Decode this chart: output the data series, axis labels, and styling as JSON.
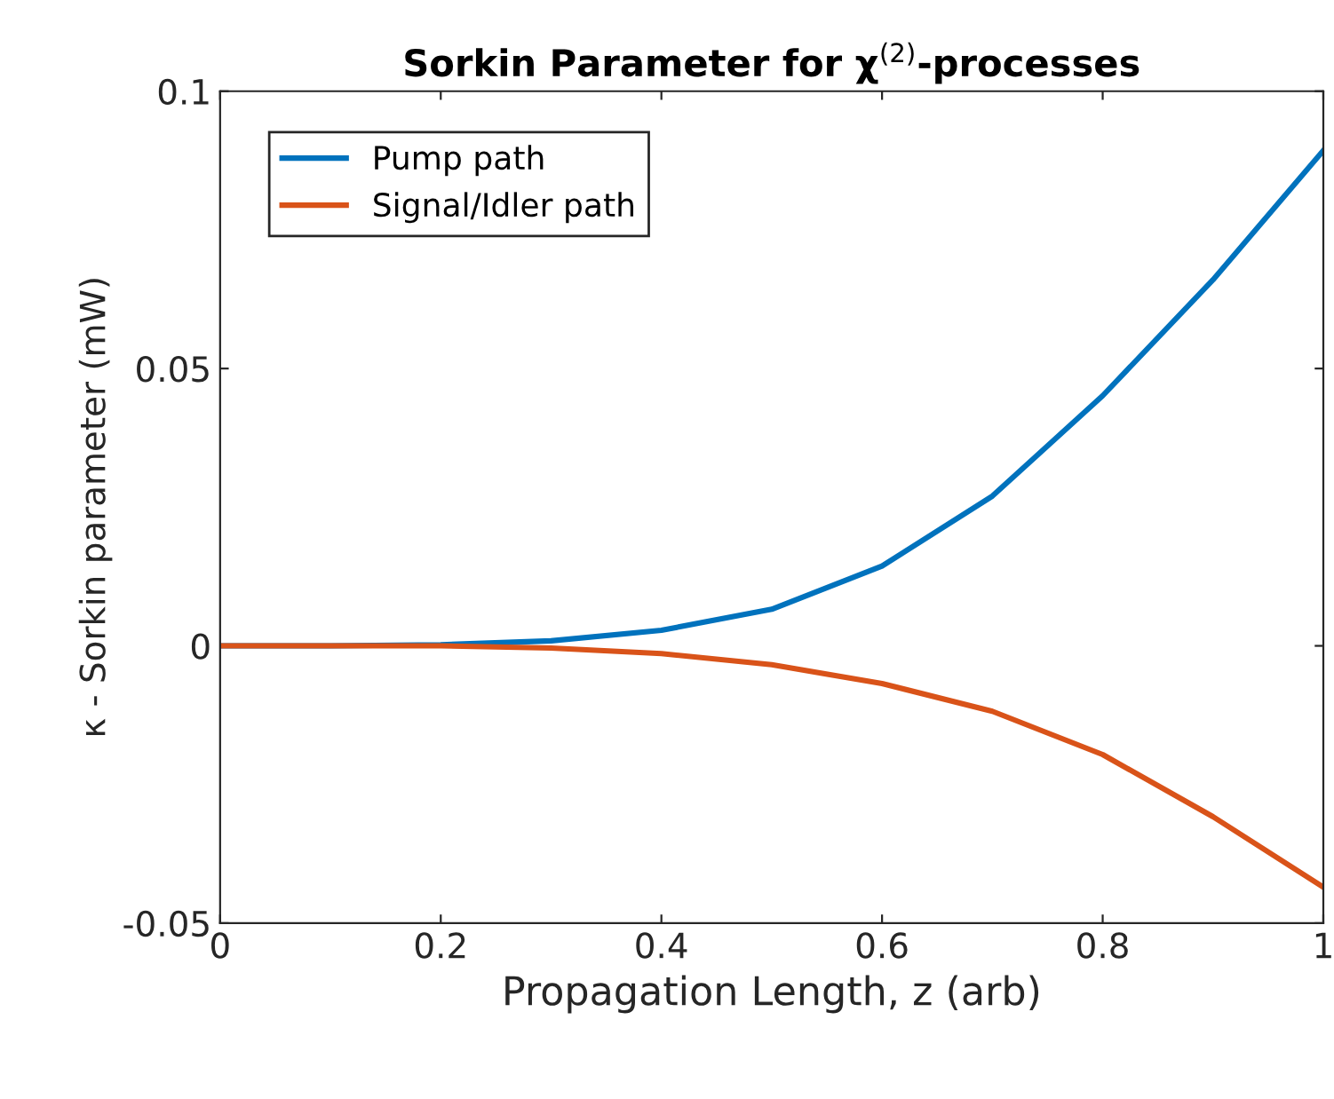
{
  "chart_data": {
    "type": "line",
    "title": "Sorkin Parameter for χ$^{(2)}$-processes",
    "xlabel": "Propagation Length, z (arb)",
    "ylabel": "κ - Sorkin parameter (mW)",
    "x": [
      0,
      0.1,
      0.2,
      0.3,
      0.4,
      0.5,
      0.6,
      0.7,
      0.8,
      0.9,
      1.0
    ],
    "series": [
      {
        "name": "Pump path",
        "color": "#0072bd",
        "values": [
          0,
          0,
          0.0002,
          0.0009,
          0.0028,
          0.0066,
          0.0144,
          0.027,
          0.0451,
          0.066,
          0.0893
        ]
      },
      {
        "name": "Signal/Idler path",
        "color": "#d95319",
        "values": [
          0,
          0,
          0,
          -0.0004,
          -0.0014,
          -0.0034,
          -0.0068,
          -0.0118,
          -0.0196,
          -0.0308,
          -0.0435
        ]
      }
    ],
    "xlim": [
      0,
      1
    ],
    "ylim": [
      -0.05,
      0.1
    ],
    "xticks": [
      0,
      0.2,
      0.4,
      0.6,
      0.8,
      1
    ],
    "yticks": [
      -0.05,
      0,
      0.05,
      0.1
    ],
    "grid": false,
    "legend": "top left",
    "marker": "none",
    "line_style": "solid"
  }
}
